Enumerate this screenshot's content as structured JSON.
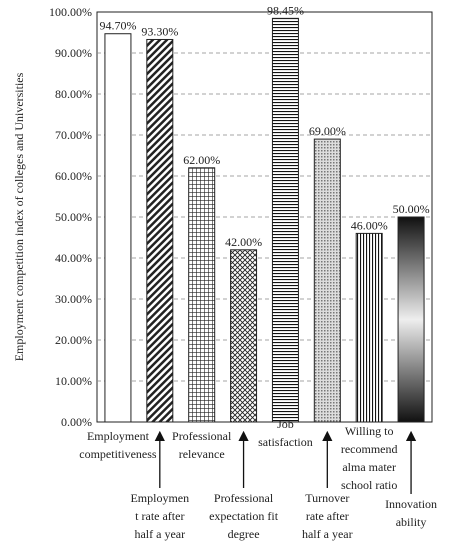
{
  "chart_data": {
    "type": "bar",
    "y_label": "Employment competition index of colleges and Universities",
    "categories": [
      "Employment\ncompetitiveness",
      "Employmen\nt rate after\nhalf a year",
      "Professional\nrelevance",
      "Professional\nexpectation fit\ndegree",
      "Job\nsatisfaction",
      "Turnover\nrate after\nhalf a year",
      "Willing to\nrecommend\nalma mater\nschool ratio",
      "Innovation\nability"
    ],
    "values": [
      94.7,
      93.3,
      62,
      42,
      98.45,
      69,
      46,
      50
    ],
    "value_labels": [
      "94.70%",
      "93.30%",
      "62.00%",
      "42.00%",
      "98.45%",
      "69.00%",
      "46.00%",
      "50.00%"
    ],
    "ylim": [
      0,
      100
    ],
    "yticks": [
      {
        "value": 0,
        "label": "0.00%"
      },
      {
        "value": 10,
        "label": "10.00%"
      },
      {
        "value": 20,
        "label": "20.00%"
      },
      {
        "value": 30,
        "label": "30.00%"
      },
      {
        "value": 40,
        "label": "40.00%"
      },
      {
        "value": 50,
        "label": "50.00%"
      },
      {
        "value": 60,
        "label": "60.00%"
      },
      {
        "value": 70,
        "label": "70.00%"
      },
      {
        "value": 80,
        "label": "80.00%"
      },
      {
        "value": 90,
        "label": "90.00%"
      },
      {
        "value": 100,
        "label": "100.00%"
      }
    ],
    "grid": true
  }
}
